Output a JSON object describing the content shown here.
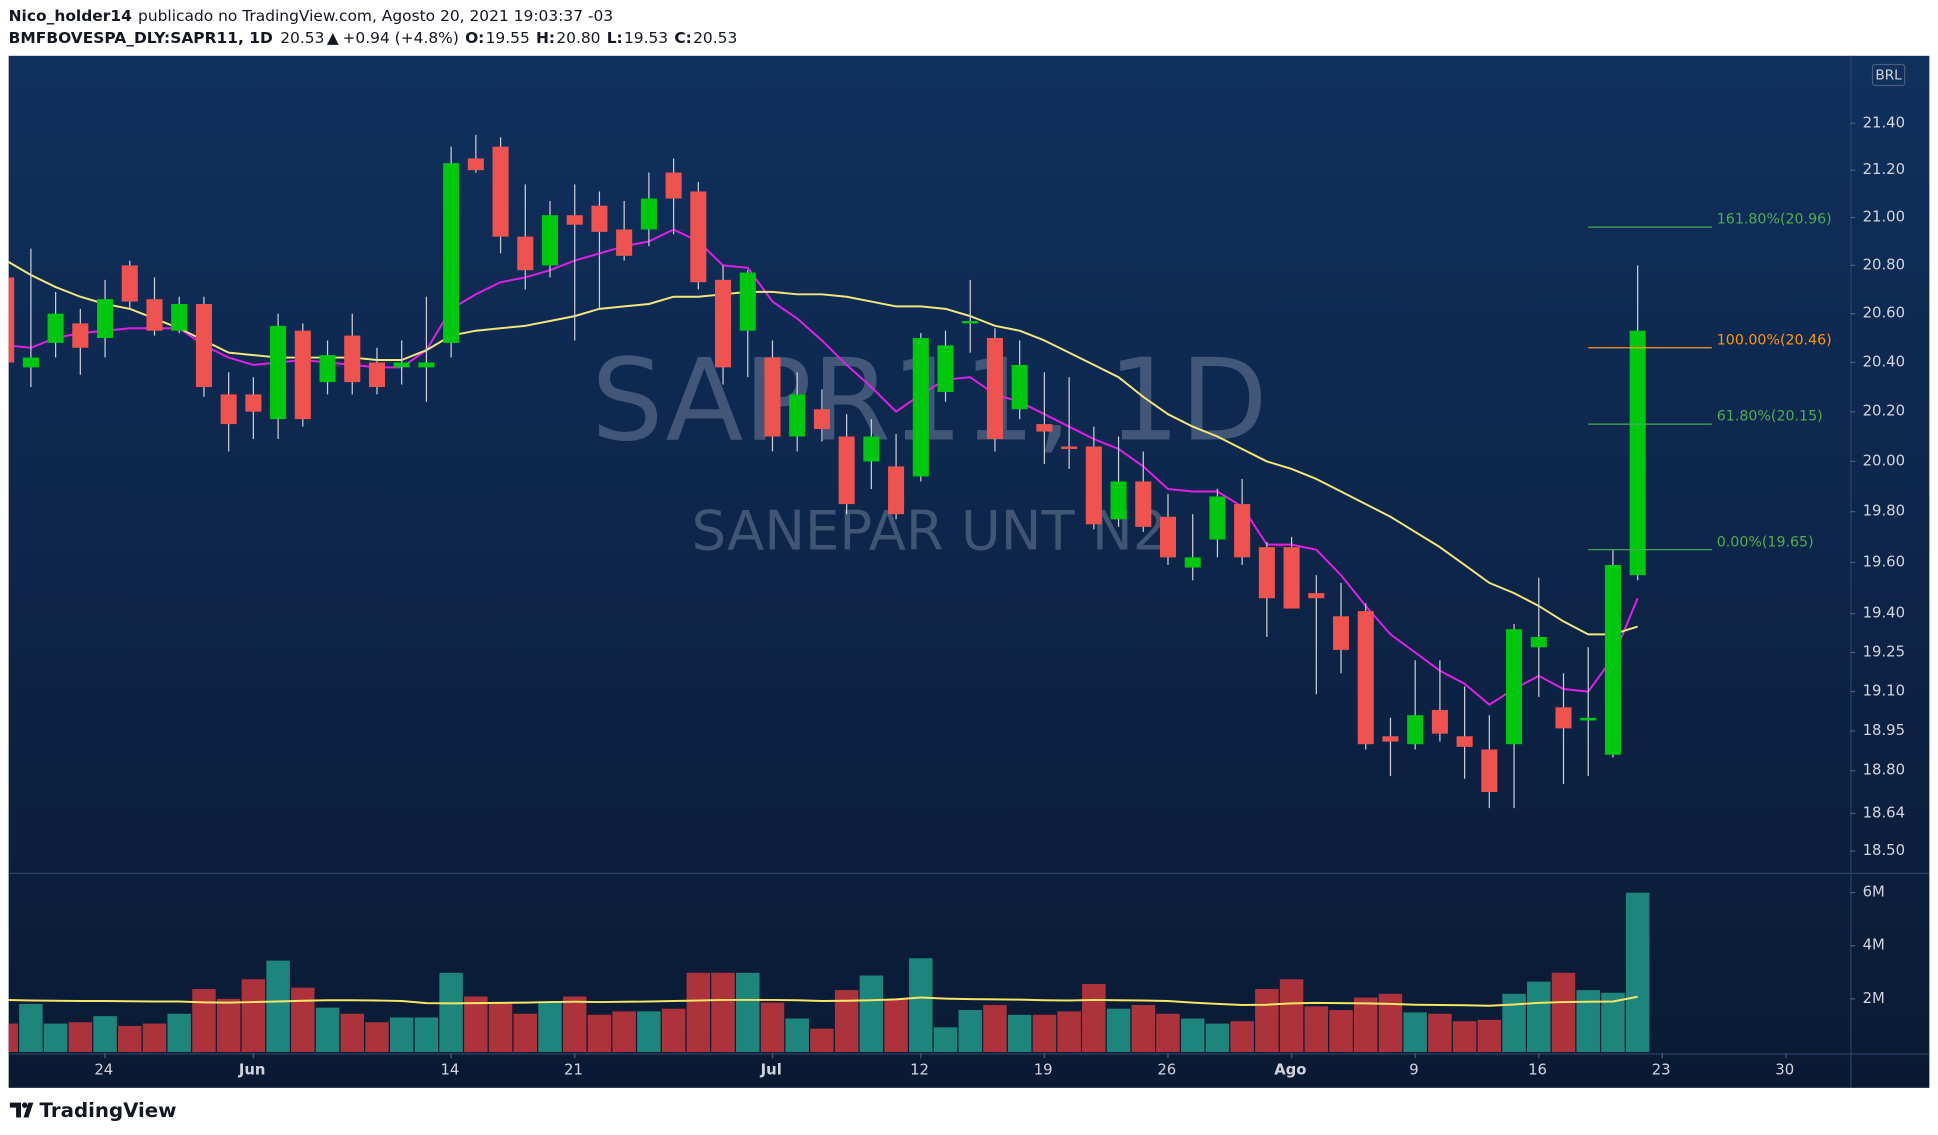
{
  "header": {
    "user": "Nico_holder14",
    "published": "publicado no TradingView.com, Agosto 20, 2021 19:03:37 -03",
    "symbol": "BMFBOVESPA_DLY:SAPR11, 1D",
    "last": "20.53",
    "arrow": "▲",
    "change": "+0.94 (+4.8%)",
    "ohlc": [
      {
        "key": "O:",
        "val": "19.55"
      },
      {
        "key": "H:",
        "val": "20.80"
      },
      {
        "key": "L:",
        "val": "19.53"
      },
      {
        "key": "C:",
        "val": "20.53"
      }
    ]
  },
  "footer": {
    "brand": "TradingView"
  },
  "chart_data": {
    "type": "candlestick",
    "watermark": {
      "symbol": "SAPR11, 1D",
      "name": "SANEPAR UNT N2"
    },
    "currency": "BRL",
    "log_scale": true,
    "grid": false,
    "up_color": "#00c80f",
    "down_color": "#ef5350",
    "wick_color": "#c9cdd6",
    "x": [
      "2021-05-18",
      "2021-05-19",
      "2021-05-20",
      "2021-05-21",
      "2021-05-24",
      "2021-05-25",
      "2021-05-26",
      "2021-05-27",
      "2021-05-28",
      "2021-05-31",
      "2021-06-01",
      "2021-06-02",
      "2021-06-04",
      "2021-06-07",
      "2021-06-08",
      "2021-06-09",
      "2021-06-10",
      "2021-06-11",
      "2021-06-14",
      "2021-06-15",
      "2021-06-16",
      "2021-06-17",
      "2021-06-18",
      "2021-06-21",
      "2021-06-22",
      "2021-06-23",
      "2021-06-24",
      "2021-06-25",
      "2021-06-28",
      "2021-06-29",
      "2021-06-30",
      "2021-07-01",
      "2021-07-02",
      "2021-07-05",
      "2021-07-06",
      "2021-07-07",
      "2021-07-08",
      "2021-07-12",
      "2021-07-13",
      "2021-07-14",
      "2021-07-15",
      "2021-07-16",
      "2021-07-19",
      "2021-07-20",
      "2021-07-21",
      "2021-07-22",
      "2021-07-23",
      "2021-07-26",
      "2021-07-27",
      "2021-07-28",
      "2021-07-29",
      "2021-07-30",
      "2021-08-02",
      "2021-08-03",
      "2021-08-04",
      "2021-08-05",
      "2021-08-06",
      "2021-08-09",
      "2021-08-10",
      "2021-08-11",
      "2021-08-12",
      "2021-08-13",
      "2021-08-16",
      "2021-08-17",
      "2021-08-18",
      "2021-08-19",
      "2021-08-20"
    ],
    "open": [
      20.75,
      20.38,
      20.48,
      20.56,
      20.5,
      20.8,
      20.66,
      20.53,
      20.64,
      20.27,
      20.27,
      20.17,
      20.53,
      20.32,
      20.51,
      20.4,
      20.38,
      20.38,
      20.48,
      21.25,
      21.3,
      20.92,
      20.8,
      21.01,
      21.05,
      20.95,
      20.95,
      21.19,
      21.11,
      20.74,
      20.53,
      20.42,
      20.1,
      20.21,
      20.1,
      20.0,
      19.98,
      19.94,
      20.28,
      20.56,
      20.5,
      20.21,
      20.15,
      20.06,
      20.06,
      19.77,
      19.92,
      19.78,
      19.58,
      19.69,
      19.83,
      19.66,
      19.66,
      19.48,
      19.39,
      19.41,
      18.93,
      18.9,
      19.03,
      18.93,
      18.88,
      18.9,
      19.27,
      19.04,
      18.99,
      18.86,
      19.55
    ],
    "high": [
      20.76,
      20.87,
      20.69,
      20.62,
      20.74,
      20.82,
      20.75,
      20.67,
      20.67,
      20.36,
      20.34,
      20.6,
      20.56,
      20.49,
      20.6,
      20.46,
      20.49,
      20.67,
      21.3,
      21.35,
      21.34,
      21.14,
      21.07,
      21.14,
      21.11,
      21.07,
      21.19,
      21.25,
      21.15,
      20.8,
      20.78,
      20.49,
      20.36,
      20.29,
      20.19,
      20.17,
      20.11,
      20.52,
      20.53,
      20.74,
      20.54,
      20.49,
      20.36,
      20.34,
      20.14,
      20.1,
      20.04,
      19.87,
      19.79,
      19.89,
      19.93,
      19.68,
      19.7,
      19.55,
      19.52,
      19.44,
      19.0,
      19.22,
      19.22,
      19.12,
      19.01,
      19.36,
      19.54,
      19.17,
      19.27,
      19.65,
      20.8
    ],
    "low": [
      20.37,
      20.3,
      20.42,
      20.35,
      20.42,
      20.62,
      20.51,
      20.52,
      20.26,
      20.04,
      20.09,
      20.09,
      20.14,
      20.27,
      20.27,
      20.27,
      20.31,
      20.24,
      20.42,
      21.19,
      20.85,
      20.7,
      20.75,
      20.49,
      20.62,
      20.82,
      20.88,
      20.93,
      20.7,
      20.31,
      20.34,
      20.04,
      20.04,
      20.08,
      19.79,
      19.89,
      19.77,
      19.92,
      20.24,
      20.44,
      20.04,
      20.17,
      19.99,
      19.97,
      19.73,
      19.74,
      19.72,
      19.59,
      19.53,
      19.62,
      19.59,
      19.31,
      19.42,
      19.09,
      19.17,
      18.88,
      18.78,
      18.88,
      18.91,
      18.77,
      18.66,
      18.66,
      19.08,
      18.75,
      18.78,
      18.85,
      19.53
    ],
    "close": [
      20.4,
      20.42,
      20.6,
      20.46,
      20.66,
      20.65,
      20.53,
      20.64,
      20.3,
      20.15,
      20.2,
      20.55,
      20.17,
      20.43,
      20.32,
      20.3,
      20.4,
      20.4,
      21.23,
      21.2,
      20.92,
      20.78,
      21.01,
      20.97,
      20.94,
      20.84,
      21.08,
      21.08,
      20.73,
      20.38,
      20.77,
      20.1,
      20.27,
      20.13,
      19.83,
      20.1,
      19.79,
      20.5,
      20.47,
      20.57,
      20.09,
      20.39,
      20.12,
      20.05,
      19.75,
      19.92,
      19.74,
      19.62,
      19.62,
      19.86,
      19.62,
      19.46,
      19.42,
      19.46,
      19.26,
      18.9,
      18.91,
      19.01,
      18.94,
      18.89,
      18.72,
      19.34,
      19.31,
      18.96,
      19.0,
      19.59,
      20.53
    ],
    "series": [
      {
        "color": "#e020e6",
        "values": [
          20.47,
          20.46,
          20.5,
          20.52,
          20.53,
          20.54,
          20.54,
          20.54,
          20.47,
          20.42,
          20.39,
          20.4,
          20.41,
          20.4,
          20.39,
          20.38,
          20.38,
          20.45,
          20.62,
          20.68,
          20.73,
          20.75,
          20.78,
          20.82,
          20.85,
          20.88,
          20.9,
          20.95,
          20.9,
          20.8,
          20.79,
          20.65,
          20.58,
          20.49,
          20.39,
          20.3,
          20.2,
          20.27,
          20.33,
          20.34,
          20.27,
          20.24,
          20.19,
          20.14,
          20.09,
          20.05,
          19.98,
          19.89,
          19.88,
          19.88,
          19.82,
          19.67,
          19.67,
          19.65,
          19.55,
          19.43,
          19.32,
          19.25,
          19.18,
          19.13,
          19.05,
          19.11,
          19.16,
          19.11,
          19.1,
          19.23,
          19.46
        ]
      },
      {
        "color": "#f3e77b",
        "values": [
          20.82,
          20.76,
          20.71,
          20.67,
          20.64,
          20.62,
          20.58,
          20.54,
          20.49,
          20.44,
          20.43,
          20.42,
          20.42,
          20.42,
          20.42,
          20.41,
          20.41,
          20.45,
          20.51,
          20.53,
          20.54,
          20.55,
          20.57,
          20.59,
          20.62,
          20.63,
          20.64,
          20.67,
          20.67,
          20.68,
          20.69,
          20.69,
          20.68,
          20.68,
          20.67,
          20.65,
          20.63,
          20.63,
          20.62,
          20.59,
          20.55,
          20.53,
          20.49,
          20.44,
          20.39,
          20.34,
          20.26,
          20.19,
          20.14,
          20.1,
          20.05,
          20.0,
          19.97,
          19.93,
          19.88,
          19.83,
          19.78,
          19.72,
          19.66,
          19.59,
          19.52,
          19.48,
          19.43,
          19.37,
          19.32,
          19.32,
          19.35
        ]
      }
    ],
    "ylim": [
      18.42,
      21.68
    ],
    "yticks": [
      {
        "value": 21.4,
        "label": "21.40"
      },
      {
        "value": 21.2,
        "label": "21.20"
      },
      {
        "value": 21,
        "label": "21.00"
      },
      {
        "value": 20.8,
        "label": "20.80"
      },
      {
        "value": 20.6,
        "label": "20.60"
      },
      {
        "value": 20.4,
        "label": "20.40"
      },
      {
        "value": 20.2,
        "label": "20.20"
      },
      {
        "value": 20,
        "label": "20.00"
      },
      {
        "value": 19.8,
        "label": "19.80"
      },
      {
        "value": 19.6,
        "label": "19.60"
      },
      {
        "value": 19.4,
        "label": "19.40"
      },
      19.25,
      {
        "value": 19.1,
        "label": "19.10"
      },
      18.95,
      {
        "value": 18.8,
        "label": "18.80"
      },
      18.64,
      {
        "value": 18.5,
        "label": "18.50"
      }
    ],
    "xticks": [
      {
        "value": "2021-05-24",
        "label": "24"
      },
      {
        "value": "2021-06-01",
        "label": "Jun"
      },
      {
        "value": "2021-06-14",
        "label": "14"
      },
      {
        "value": "2021-06-21",
        "label": "21"
      },
      {
        "value": "2021-07-01",
        "label": "Jul"
      },
      {
        "value": "2021-07-12",
        "label": "12"
      },
      {
        "value": "2021-07-19",
        "label": "19"
      },
      {
        "value": "2021-07-26",
        "label": "26"
      },
      {
        "value": "2021-08-02",
        "label": "Ago"
      },
      {
        "value": "2021-08-09",
        "label": "9"
      },
      {
        "value": "2021-08-16",
        "label": "16"
      },
      {
        "value": "2021-08-23",
        "label": "23"
      },
      {
        "value": "2021-08-30",
        "label": "30"
      }
    ],
    "fib_levels": [
      {
        "value": 20.96,
        "label": "161.80%(20.96)",
        "color": "#4caf50"
      },
      {
        "value": 20.46,
        "label": "100.00%(20.46)",
        "color": "#ff9800"
      },
      {
        "value": 20.15,
        "label": "61.80%(20.15)",
        "color": "#4caf50"
      },
      {
        "value": 19.65,
        "label": "0.00%(19.65)",
        "color": "#4caf50"
      }
    ],
    "volume": {
      "up_color": "#1d857b",
      "down_color": "#ac323b",
      "ylim": [
        0,
        6700000
      ],
      "yticks": [
        {
          "value": 6000000,
          "label": "6M"
        },
        {
          "value": 4000000,
          "label": "4M"
        },
        {
          "value": 2000000,
          "label": "2M"
        }
      ],
      "values": [
        1070000,
        1810000,
        1070000,
        1120000,
        1350000,
        980000,
        1070000,
        1440000,
        2370000,
        2000000,
        2740000,
        3440000,
        2420000,
        1670000,
        1440000,
        1120000,
        1300000,
        1300000,
        2980000,
        2090000,
        1860000,
        1440000,
        1910000,
        2090000,
        1400000,
        1530000,
        1530000,
        1630000,
        2980000,
        2980000,
        2980000,
        1860000,
        1260000,
        880000,
        2330000,
        2880000,
        2000000,
        3530000,
        930000,
        1580000,
        1770000,
        1400000,
        1400000,
        1530000,
        2560000,
        1630000,
        1770000,
        1440000,
        1260000,
        1070000,
        1160000,
        2370000,
        2740000,
        1720000,
        1580000,
        2050000,
        2190000,
        1490000,
        1440000,
        1160000,
        1210000,
        2190000,
        2650000,
        2980000,
        2330000,
        2230000,
        6000000
      ],
      "ma": {
        "color": "#f5e663",
        "values": [
          1960000,
          1940000,
          1930000,
          1920000,
          1920000,
          1910000,
          1900000,
          1900000,
          1870000,
          1860000,
          1880000,
          1900000,
          1930000,
          1950000,
          1950000,
          1940000,
          1920000,
          1840000,
          1830000,
          1840000,
          1850000,
          1860000,
          1880000,
          1890000,
          1880000,
          1890000,
          1900000,
          1920000,
          1940000,
          1960000,
          1960000,
          1960000,
          1950000,
          1920000,
          1930000,
          1950000,
          1980000,
          2050000,
          2010000,
          1990000,
          1980000,
          1970000,
          1950000,
          1940000,
          1960000,
          1950000,
          1940000,
          1920000,
          1860000,
          1810000,
          1770000,
          1780000,
          1830000,
          1850000,
          1840000,
          1830000,
          1810000,
          1780000,
          1770000,
          1760000,
          1740000,
          1790000,
          1850000,
          1880000,
          1890000,
          1900000,
          2080000
        ]
      }
    }
  }
}
